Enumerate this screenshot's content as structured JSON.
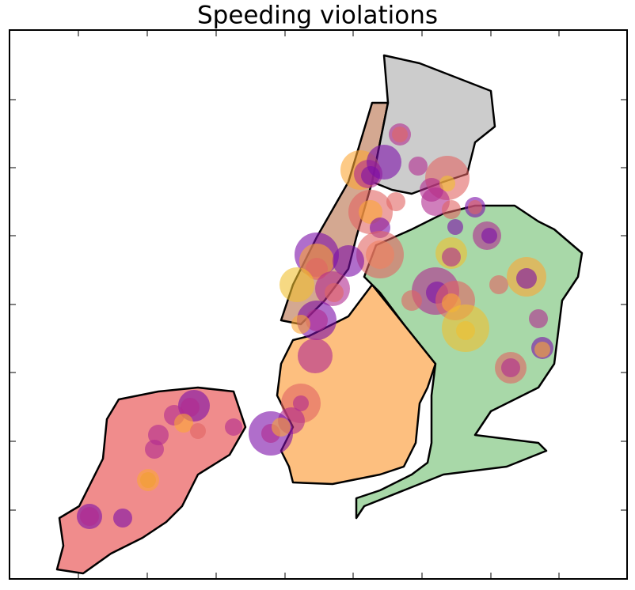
{
  "title": "Speeding violations"
}
